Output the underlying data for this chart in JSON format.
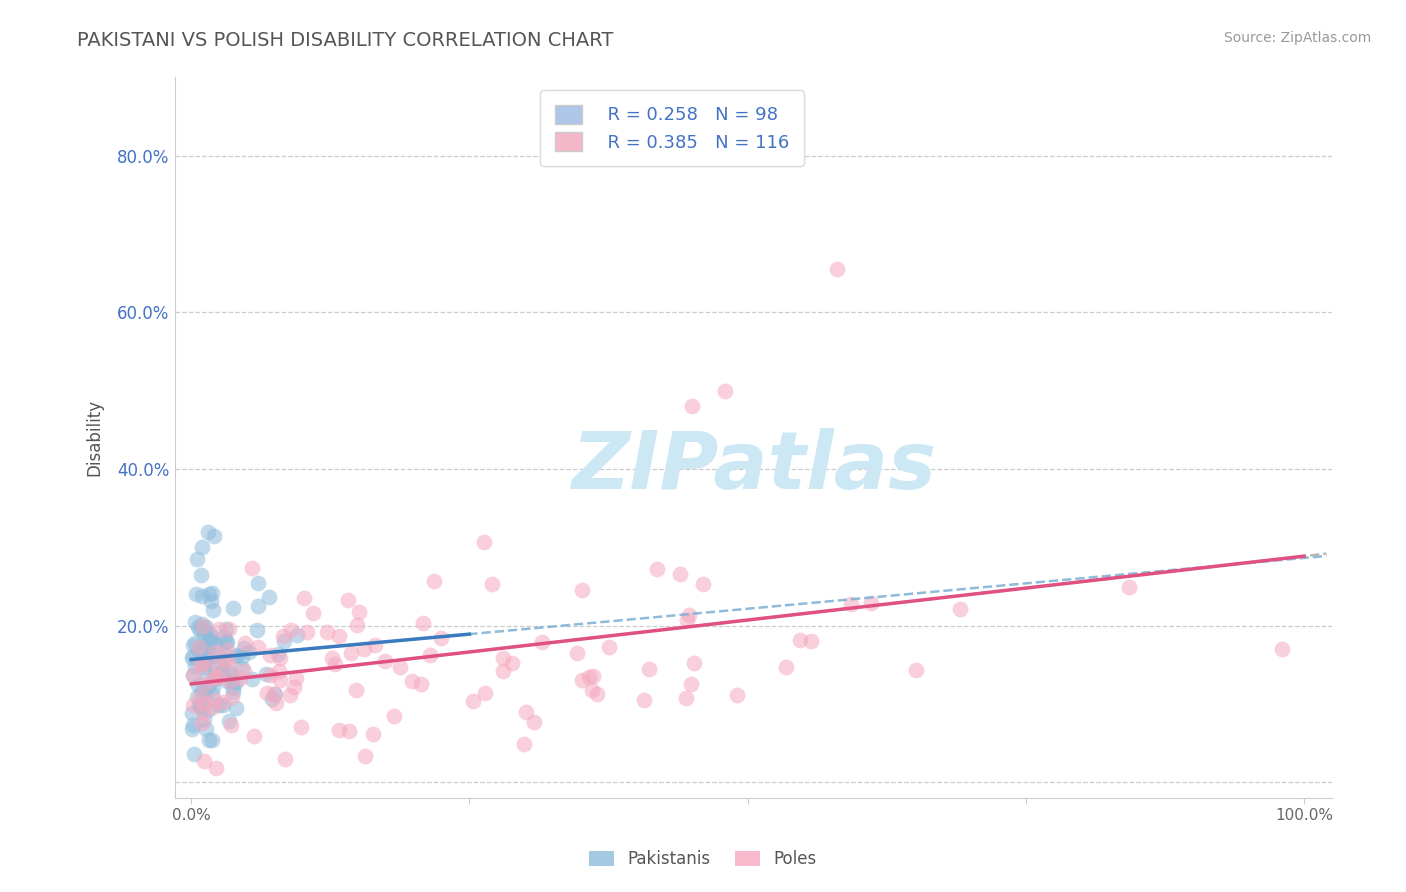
{
  "title": "PAKISTANI VS POLISH DISABILITY CORRELATION CHART",
  "source": "Source: ZipAtlas.com",
  "ylabel": "Disability",
  "xmin": 0.0,
  "xmax": 1.0,
  "ymin": -0.02,
  "ymax": 0.9,
  "ytick_positions": [
    0.0,
    0.2,
    0.4,
    0.6,
    0.8
  ],
  "ytick_labels": [
    "",
    "20.0%",
    "40.0%",
    "60.0%",
    "80.0%"
  ],
  "pakistani_R": 0.258,
  "pakistani_N": 98,
  "polish_R": 0.385,
  "polish_N": 116,
  "blue_scatter_color": "#8fbcdb",
  "blue_line_color": "#3a7abf",
  "blue_dash_color": "#7aafd4",
  "pink_scatter_color": "#f5a8be",
  "pink_line_color": "#e05080",
  "pink_dash_color": "#cccccc",
  "grid_color": "#cccccc",
  "watermark_color": "#cde8f5",
  "background_color": "#ffffff",
  "title_color": "#555555",
  "axis_label_color": "#4472c4",
  "legend_text_color": "#4472c4",
  "legend_box_blue": "#aec6e8",
  "legend_box_pink": "#f4b8c8",
  "bottom_legend_color": "#555555"
}
